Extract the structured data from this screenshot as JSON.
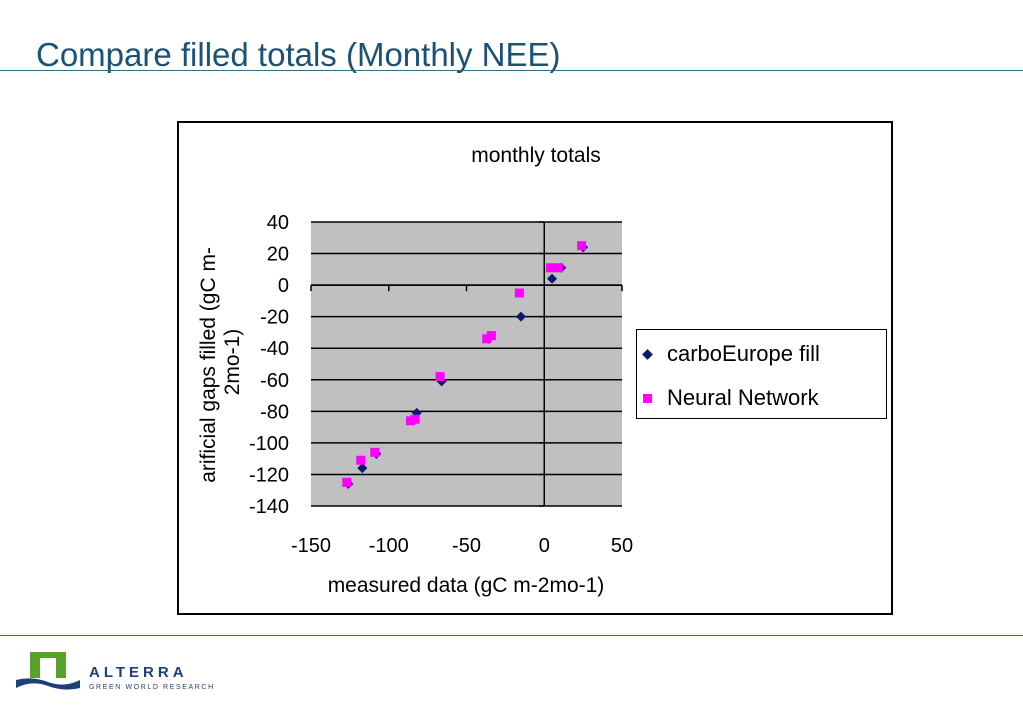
{
  "slide": {
    "title": "Compare filled totals (Monthly NEE)"
  },
  "logo": {
    "name": "ALTERRA",
    "tagline": "GREEN WORLD RESEARCH",
    "colors": {
      "green": "#5aa02c",
      "blue": "#1d3f7a"
    }
  },
  "chart_data": {
    "type": "scatter",
    "title": "monthly totals",
    "xlabel": "measured data (gC m-2mo-1)",
    "ylabel": "arificial gaps filled  (gC m-2mo-1)",
    "xlim": [
      -150,
      50
    ],
    "ylim": [
      -140,
      40
    ],
    "xticks": [
      -150,
      -100,
      -50,
      0,
      50
    ],
    "yticks": [
      -140,
      -120,
      -100,
      -80,
      -60,
      -40,
      -20,
      0,
      20,
      40
    ],
    "grid": "horizontal",
    "plot_background": "#c0c0c0",
    "legend_position": "right",
    "series": [
      {
        "name": "carboEurope fill",
        "marker": "diamond",
        "color": "#0c1a6b",
        "points": [
          [
            -126,
            -126
          ],
          [
            -117,
            -116
          ],
          [
            -108,
            -107
          ],
          [
            -82,
            -81
          ],
          [
            -66,
            -61
          ],
          [
            -36,
            -34
          ],
          [
            -15,
            -20
          ],
          [
            5,
            4
          ],
          [
            11,
            11
          ],
          [
            25,
            24
          ]
        ]
      },
      {
        "name": "Neural Network",
        "marker": "square",
        "color": "#ff00ff",
        "points": [
          [
            -127,
            -125
          ],
          [
            -118,
            -111
          ],
          [
            -109,
            -106
          ],
          [
            -86,
            -86
          ],
          [
            -83,
            -85
          ],
          [
            -67,
            -58
          ],
          [
            -37,
            -34
          ],
          [
            -34,
            -32
          ],
          [
            -16,
            -5
          ],
          [
            4,
            11
          ],
          [
            9,
            11
          ],
          [
            24,
            25
          ]
        ]
      }
    ]
  }
}
